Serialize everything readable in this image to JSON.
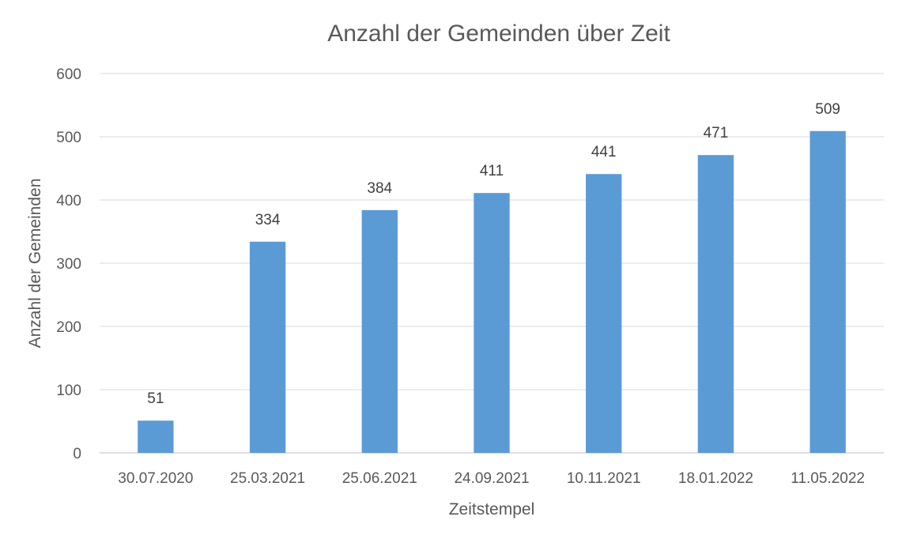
{
  "chart_data": {
    "type": "bar",
    "title": "Anzahl der Gemeinden über Zeit",
    "xlabel": "Zeitstempel",
    "ylabel": "Anzahl der Gemeinden",
    "categories": [
      "30.07.2020",
      "25.03.2021",
      "25.06.2021",
      "24.09.2021",
      "10.11.2021",
      "18.01.2022",
      "11.05.2022"
    ],
    "values": [
      51,
      334,
      384,
      411,
      441,
      471,
      509
    ],
    "data_labels": [
      "51",
      "334",
      "384",
      "411",
      "441",
      "471",
      "509"
    ],
    "ylim": [
      0,
      600
    ],
    "yticks": [
      0,
      100,
      200,
      300,
      400,
      500,
      600
    ],
    "ytick_labels": [
      "0",
      "100",
      "200",
      "300",
      "400",
      "500",
      "600"
    ],
    "grid": true,
    "legend": "none",
    "bar_color": "#5b9bd5"
  }
}
